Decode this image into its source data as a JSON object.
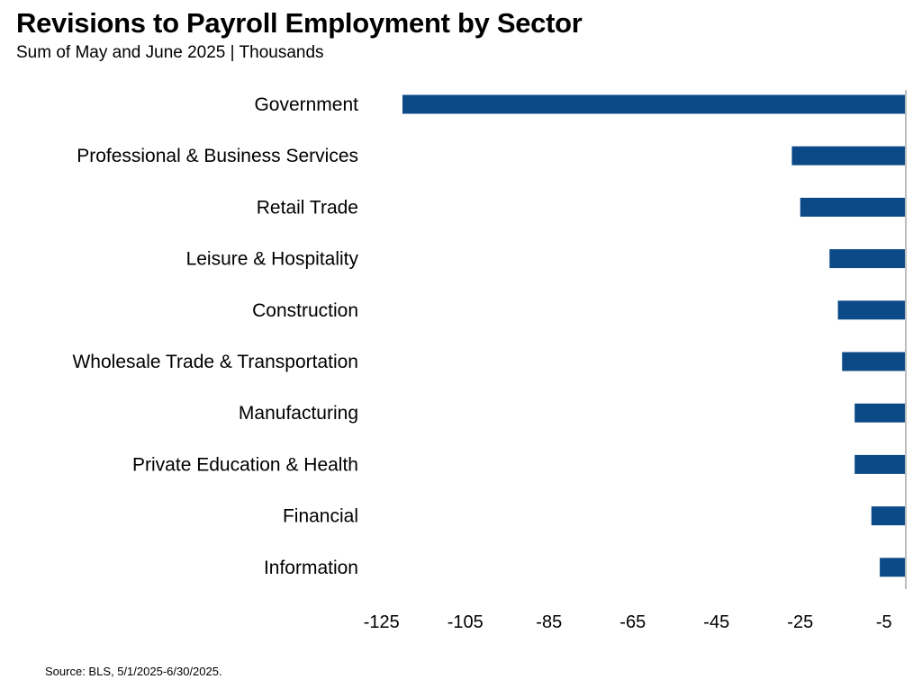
{
  "chart_data": {
    "type": "bar",
    "orientation": "horizontal",
    "title": "Revisions to Payroll Employment by Sector",
    "subtitle": "Sum of May and June 2025 | Thousands",
    "categories": [
      "Government",
      "Professional & Business Services",
      "Retail Trade",
      "Leisure & Hospitality",
      "Construction",
      "Wholesale Trade & Transportation",
      "Manufacturing",
      "Private Education & Health",
      "Financial",
      "Information"
    ],
    "values": [
      -120,
      -27,
      -25,
      -18,
      -16,
      -15,
      -12,
      -12,
      -8,
      -6
    ],
    "xlabel": "",
    "ylabel": "",
    "xlim": [
      -130,
      0
    ],
    "x_ticks": [
      -125,
      -105,
      -85,
      -65,
      -45,
      -25,
      -5
    ],
    "x_tick_labels": [
      "-125",
      "-105",
      "-85",
      "-65",
      "-45",
      "-25",
      "-5"
    ],
    "grid": false,
    "legend": "none",
    "bar_color": "#0B4A87",
    "axis_color": "#A6A6A6"
  },
  "source": "Source: BLS, 5/1/2025-6/30/2025."
}
